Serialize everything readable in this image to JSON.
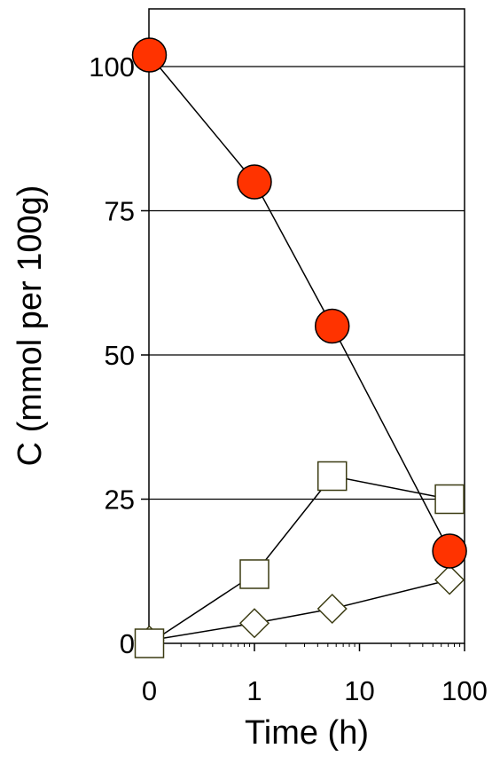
{
  "chart_data": {
    "type": "line",
    "xlabel": "Time (h)",
    "ylabel": "C (mmol per 100g)",
    "xscale": "log",
    "x_ticks": [
      {
        "value": 0.1,
        "label": "0"
      },
      {
        "value": 1,
        "label": "1"
      },
      {
        "value": 10,
        "label": "10"
      },
      {
        "value": 100,
        "label": "100"
      }
    ],
    "y_ticks": [
      0,
      25,
      50,
      75,
      100
    ],
    "ylim": [
      0,
      110
    ],
    "grid": "horizontal",
    "series": [
      {
        "marker": "filled-circle",
        "color": "#ff3300",
        "points": [
          [
            0.1,
            102
          ],
          [
            1,
            80
          ],
          [
            5.5,
            55
          ],
          [
            72,
            16
          ]
        ]
      },
      {
        "marker": "open-square",
        "color": "#3b3b12",
        "points": [
          [
            0.1,
            0
          ],
          [
            1,
            12
          ],
          [
            5.5,
            29
          ],
          [
            72,
            25
          ]
        ]
      },
      {
        "marker": "open-diamond",
        "color": "#3b3b12",
        "points": [
          [
            0.1,
            0.5
          ],
          [
            1,
            3.5
          ],
          [
            5.5,
            6
          ],
          [
            72,
            11
          ]
        ]
      }
    ]
  }
}
